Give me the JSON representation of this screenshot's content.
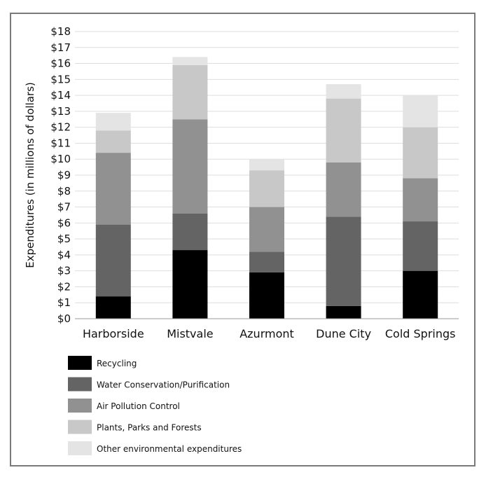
{
  "chart_data": {
    "type": "bar",
    "stacked": true,
    "categories": [
      "Harborside",
      "Mistvale",
      "Azurmont",
      "Dune City",
      "Cold Springs"
    ],
    "series": [
      {
        "name": "Recycling",
        "color": "#000000",
        "values": [
          1.4,
          4.3,
          2.9,
          0.8,
          3.0
        ]
      },
      {
        "name": "Water Conservation/Purification",
        "color": "#646464",
        "values": [
          4.5,
          2.3,
          1.3,
          5.6,
          3.1
        ]
      },
      {
        "name": "Air Pollution Control",
        "color": "#919191",
        "values": [
          4.5,
          5.9,
          2.8,
          3.4,
          2.7
        ]
      },
      {
        "name": "Plants, Parks and Forests",
        "color": "#c8c8c8",
        "values": [
          1.4,
          3.4,
          2.3,
          4.0,
          3.2
        ]
      },
      {
        "name": "Other environmental expenditures",
        "color": "#e4e4e4",
        "values": [
          1.1,
          0.5,
          0.7,
          0.9,
          2.0
        ]
      }
    ],
    "xlabel": "",
    "ylabel": "Expenditures (in millions of dollars)",
    "ylim": [
      0,
      18
    ],
    "yticks": [
      "$0",
      "$1",
      "$2",
      "$3",
      "$4",
      "$5",
      "$6",
      "$7",
      "$8",
      "$9",
      "$10",
      "$11",
      "$12",
      "$13",
      "$14",
      "$15",
      "$16",
      "$17",
      "$18"
    ],
    "grid": true,
    "legend_position": "bottom"
  }
}
